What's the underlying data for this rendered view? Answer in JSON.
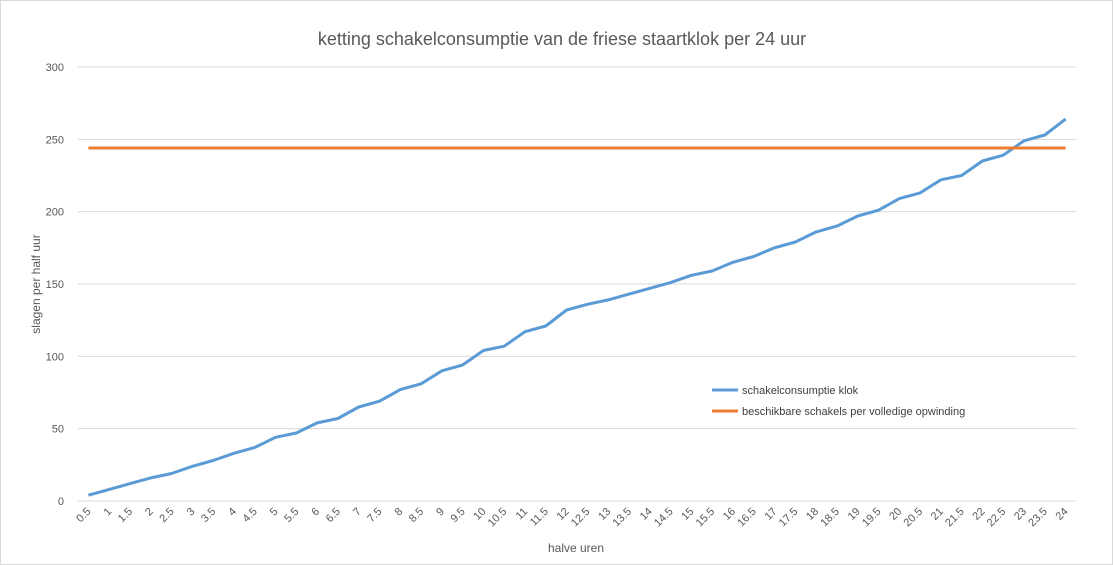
{
  "chart_data": {
    "type": "line",
    "title": "ketting schakelconsumptie van de friese staartklok per 24 uur",
    "xlabel": "halve uren",
    "ylabel": "slagen per half uur",
    "ylim": [
      0,
      300
    ],
    "yticks": [
      0,
      50,
      100,
      150,
      200,
      250,
      300
    ],
    "grid": true,
    "legend_position": "center-right",
    "categories": [
      "0.5",
      "1",
      "1.5",
      "2",
      "2.5",
      "3",
      "3.5",
      "4",
      "4.5",
      "5",
      "5.5",
      "6",
      "6.5",
      "7",
      "7.5",
      "8",
      "8.5",
      "9",
      "9.5",
      "10",
      "10.5",
      "11",
      "11.5",
      "12",
      "12.5",
      "13",
      "13.5",
      "14",
      "14.5",
      "15",
      "15.5",
      "16",
      "16.5",
      "17",
      "17.5",
      "18",
      "18.5",
      "19",
      "19.5",
      "20",
      "20.5",
      "21",
      "21.5",
      "22",
      "22.5",
      "23",
      "23.5",
      "24"
    ],
    "series": [
      {
        "name": "schakelconsumptie klok",
        "color": "#5b9bd5",
        "values": [
          4,
          8,
          12,
          16,
          19,
          24,
          28,
          33,
          37,
          44,
          47,
          54,
          57,
          65,
          69,
          77,
          81,
          90,
          94,
          104,
          107,
          117,
          121,
          132,
          136,
          139,
          143,
          147,
          151,
          156,
          159,
          165,
          169,
          175,
          179,
          186,
          190,
          197,
          201,
          209,
          213,
          222,
          225,
          235,
          239,
          249,
          253,
          264
        ]
      },
      {
        "name": "beschikbare schakels per volledige opwinding",
        "color": "#ed7d31",
        "values": [
          244,
          244,
          244,
          244,
          244,
          244,
          244,
          244,
          244,
          244,
          244,
          244,
          244,
          244,
          244,
          244,
          244,
          244,
          244,
          244,
          244,
          244,
          244,
          244,
          244,
          244,
          244,
          244,
          244,
          244,
          244,
          244,
          244,
          244,
          244,
          244,
          244,
          244,
          244,
          244,
          244,
          244,
          244,
          244,
          244,
          244,
          244,
          244
        ]
      }
    ]
  }
}
